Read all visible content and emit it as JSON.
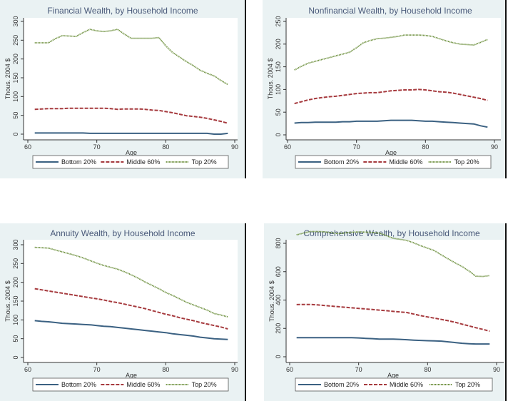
{
  "figure": {
    "panel_bg": "#eaf2f3",
    "plot_bg": "#ffffff",
    "series_colors": {
      "bottom": "#3b6182",
      "middle": "#a63a3e",
      "top": "#6c8f3c"
    }
  },
  "chart_data": [
    {
      "type": "line",
      "title": "Financial Wealth, by Household Income",
      "xlabel": "Age",
      "ylabel": "Thous. 2004 $",
      "xlim": [
        60,
        90
      ],
      "ylim": [
        0,
        300
      ],
      "xticks": [
        60,
        70,
        80,
        90
      ],
      "yticks": [
        0,
        50,
        100,
        150,
        200,
        250,
        300
      ],
      "grid": false,
      "legend": {
        "placement": "bottom",
        "entries": [
          "Bottom 20%",
          "Middle 60%",
          "Top 20%"
        ]
      },
      "x": [
        61,
        62,
        63,
        64,
        65,
        66,
        67,
        68,
        69,
        70,
        71,
        72,
        73,
        74,
        75,
        76,
        77,
        78,
        79,
        80,
        81,
        82,
        83,
        84,
        85,
        86,
        87,
        88,
        89
      ],
      "series": [
        {
          "name": "Bottom 20%",
          "style": "solid",
          "values": [
            3,
            3,
            3,
            3,
            3,
            3,
            3,
            3,
            2,
            2,
            2,
            2,
            2,
            2,
            2,
            2,
            2,
            2,
            2,
            2,
            2,
            2,
            2,
            2,
            2,
            2,
            0,
            0,
            2
          ]
        },
        {
          "name": "Middle 60%",
          "style": "dash",
          "values": [
            66,
            67,
            68,
            68,
            68,
            69,
            69,
            69,
            69,
            69,
            69,
            68,
            66,
            67,
            67,
            67,
            66,
            64,
            63,
            60,
            57,
            53,
            49,
            47,
            45,
            42,
            38,
            34,
            29
          ]
        },
        {
          "name": "Top 20%",
          "style": "dot",
          "values": [
            243,
            243,
            243,
            254,
            262,
            261,
            260,
            270,
            279,
            275,
            273,
            275,
            279,
            266,
            255,
            255,
            255,
            255,
            257,
            235,
            217,
            205,
            193,
            182,
            170,
            162,
            155,
            143,
            132
          ]
        }
      ]
    },
    {
      "type": "line",
      "title": "Nonfinancial Wealth, by Household Income",
      "xlabel": "Age",
      "ylabel": "Thous. 2004 $",
      "xlim": [
        60,
        90
      ],
      "ylim": [
        0,
        250
      ],
      "xticks": [
        60,
        70,
        80,
        90
      ],
      "yticks": [
        0,
        50,
        100,
        150,
        200,
        250
      ],
      "grid": false,
      "legend": {
        "placement": "bottom",
        "entries": [
          "Bottom 20%",
          "Middle 60%",
          "Top 20%"
        ]
      },
      "x": [
        61,
        62,
        63,
        64,
        65,
        66,
        67,
        68,
        69,
        70,
        71,
        72,
        73,
        74,
        75,
        76,
        77,
        78,
        79,
        80,
        81,
        82,
        83,
        84,
        85,
        86,
        87,
        88,
        89
      ],
      "series": [
        {
          "name": "Bottom 20%",
          "style": "solid",
          "values": [
            26,
            27,
            27,
            28,
            28,
            28,
            28,
            29,
            29,
            30,
            30,
            30,
            30,
            31,
            32,
            32,
            32,
            32,
            31,
            30,
            30,
            29,
            28,
            27,
            26,
            25,
            24,
            20,
            17
          ]
        },
        {
          "name": "Middle 60%",
          "style": "dash",
          "values": [
            69,
            73,
            77,
            80,
            82,
            84,
            85,
            87,
            89,
            91,
            92,
            93,
            93,
            95,
            97,
            98,
            99,
            99,
            100,
            99,
            97,
            95,
            94,
            92,
            89,
            86,
            83,
            80,
            76
          ]
        },
        {
          "name": "Top 20%",
          "style": "dot",
          "values": [
            143,
            151,
            158,
            162,
            166,
            170,
            174,
            178,
            182,
            192,
            203,
            208,
            212,
            213,
            215,
            217,
            220,
            220,
            220,
            219,
            217,
            212,
            207,
            203,
            200,
            199,
            198,
            204,
            210
          ]
        }
      ]
    },
    {
      "type": "line",
      "title": "Annuity Wealth, by Household Income",
      "xlabel": "Age",
      "ylabel": "Thous. 2004 $",
      "xlim": [
        60,
        90
      ],
      "ylim": [
        0,
        300
      ],
      "xticks": [
        60,
        70,
        80,
        90
      ],
      "yticks": [
        0,
        50,
        100,
        150,
        200,
        250,
        300
      ],
      "grid": false,
      "legend": {
        "placement": "bottom",
        "entries": [
          "Bottom 20%",
          "Middle 60%",
          "Top 20%"
        ]
      },
      "x": [
        61,
        62,
        63,
        64,
        65,
        66,
        67,
        68,
        69,
        70,
        71,
        72,
        73,
        74,
        75,
        76,
        77,
        78,
        79,
        80,
        81,
        82,
        83,
        84,
        85,
        86,
        87,
        88,
        89
      ],
      "series": [
        {
          "name": "Bottom 20%",
          "style": "solid",
          "values": [
            98,
            96,
            95,
            93,
            91,
            90,
            89,
            88,
            87,
            85,
            83,
            82,
            80,
            78,
            76,
            74,
            72,
            70,
            68,
            66,
            63,
            61,
            59,
            57,
            54,
            52,
            50,
            49,
            48
          ]
        },
        {
          "name": "Middle 60%",
          "style": "dash",
          "values": [
            183,
            180,
            177,
            174,
            171,
            168,
            165,
            162,
            159,
            156,
            153,
            149,
            146,
            142,
            138,
            134,
            130,
            125,
            120,
            115,
            111,
            106,
            102,
            98,
            93,
            89,
            85,
            81,
            76
          ]
        },
        {
          "name": "Top 20%",
          "style": "dot",
          "values": [
            293,
            292,
            291,
            286,
            281,
            276,
            271,
            265,
            258,
            251,
            245,
            240,
            235,
            228,
            220,
            211,
            201,
            192,
            183,
            173,
            165,
            156,
            147,
            140,
            133,
            126,
            117,
            113,
            108
          ]
        }
      ]
    },
    {
      "type": "line",
      "title": "Comprehensive Wealth, by Household Income",
      "xlabel": "Age",
      "ylabel": "Thous. 2004 $",
      "xlim": [
        60,
        90
      ],
      "ylim": [
        0,
        900
      ],
      "xticks": [
        60,
        70,
        80,
        90
      ],
      "yticks": [
        0,
        200,
        400,
        600,
        800
      ],
      "grid": false,
      "legend": {
        "placement": "bottom",
        "entries": [
          "Bottom 20%",
          "Middle 60%",
          "Top 20%"
        ]
      },
      "x": [
        61,
        62,
        63,
        64,
        65,
        66,
        67,
        68,
        69,
        70,
        71,
        72,
        73,
        74,
        75,
        76,
        77,
        78,
        79,
        80,
        81,
        82,
        83,
        84,
        85,
        86,
        87,
        88,
        89
      ],
      "series": [
        {
          "name": "Bottom 20%",
          "style": "solid",
          "values": [
            135,
            135,
            135,
            135,
            135,
            135,
            135,
            135,
            135,
            133,
            130,
            128,
            125,
            125,
            125,
            123,
            120,
            117,
            115,
            113,
            112,
            110,
            105,
            100,
            95,
            92,
            90,
            90,
            90
          ]
        },
        {
          "name": "Middle 60%",
          "style": "dash",
          "values": [
            368,
            369,
            369,
            366,
            362,
            357,
            353,
            349,
            345,
            341,
            337,
            333,
            329,
            325,
            320,
            316,
            312,
            301,
            290,
            281,
            272,
            263,
            254,
            243,
            230,
            218,
            205,
            193,
            180
          ]
        },
        {
          "name": "Top 20%",
          "style": "dot",
          "values": [
            860,
            872,
            883,
            883,
            881,
            875,
            869,
            873,
            878,
            880,
            879,
            876,
            872,
            855,
            835,
            828,
            820,
            803,
            783,
            766,
            748,
            718,
            690,
            662,
            636,
            605,
            568,
            566,
            572
          ]
        }
      ]
    }
  ]
}
